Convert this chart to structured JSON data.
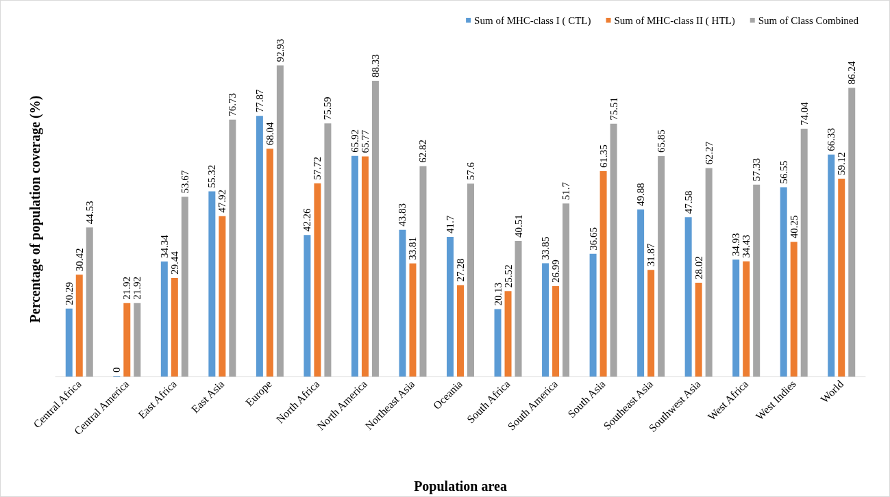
{
  "chart_data": {
    "type": "bar",
    "xlabel": "Population area",
    "ylabel": "Percentage of population coverage (%)",
    "categories": [
      "Central Africa",
      "Central America",
      "East Africa",
      "East Asia",
      "Europe",
      "North Africa",
      "North America",
      "Northeast Asia",
      "Oceania",
      "South Africa",
      "South America",
      "South Asia",
      "Southeast Asia",
      "Southwest Asia",
      "West Africa",
      "West Indies",
      "World"
    ],
    "series": [
      {
        "name": "Sum of MHC-class I ( CTL)",
        "color": "#5b9bd5",
        "values": [
          20.29,
          0,
          34.34,
          55.32,
          77.87,
          42.26,
          65.92,
          43.83,
          41.7,
          20.13,
          33.85,
          36.65,
          49.88,
          47.58,
          34.93,
          56.55,
          66.33
        ]
      },
      {
        "name": "Sum of MHC-class II ( HTL)",
        "color": "#ed7d31",
        "values": [
          30.42,
          21.92,
          29.44,
          47.92,
          68.04,
          57.72,
          65.77,
          33.81,
          27.28,
          25.52,
          26.99,
          61.35,
          31.87,
          28.02,
          34.43,
          40.25,
          59.12
        ]
      },
      {
        "name": "Sum of Class Combined",
        "color": "#a5a5a5",
        "values": [
          44.53,
          21.92,
          53.67,
          76.73,
          92.93,
          75.59,
          88.33,
          62.82,
          57.6,
          40.51,
          51.7,
          75.51,
          65.85,
          62.27,
          57.33,
          74.04,
          86.24
        ]
      }
    ],
    "data_labels": true,
    "legend": "top right",
    "grid": false
  }
}
